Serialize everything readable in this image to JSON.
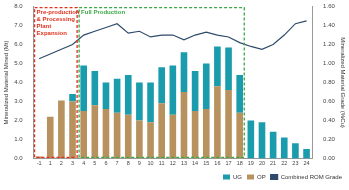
{
  "chart_data": {
    "type": "bar",
    "stacked": true,
    "grid": false,
    "legend": "bottom",
    "y_label": "Mineralized Material Mined (Mt)",
    "y2_label": "Mineralized Material Grade (%Cu)",
    "categories": [
      "-1",
      "1",
      "2",
      "3",
      "4",
      "5",
      "6",
      "7",
      "8",
      "9",
      "10",
      "11",
      "12",
      "13",
      "14",
      "15",
      "16",
      "17",
      "18",
      "19",
      "20",
      "21",
      "22",
      "23",
      "24"
    ],
    "series": [
      {
        "name": "UG",
        "type": "bar",
        "color": "#1a9cac",
        "values": [
          0,
          0,
          0,
          0.4,
          2.4,
          1.8,
          1.4,
          1.8,
          2.1,
          2.0,
          2.1,
          1.9,
          2.6,
          2.1,
          2.1,
          2.4,
          2.1,
          2.25,
          2.0,
          2.0,
          1.9,
          1.4,
          1.1,
          0.8,
          0.5
        ]
      },
      {
        "name": "OP",
        "type": "bar",
        "color": "#b8925e",
        "values": [
          0.1,
          2.2,
          3.05,
          3.0,
          2.5,
          2.8,
          2.6,
          2.4,
          2.3,
          2.0,
          1.9,
          2.9,
          2.3,
          3.5,
          2.5,
          2.6,
          3.8,
          3.6,
          2.4,
          0,
          0,
          0,
          0,
          0,
          0
        ]
      },
      {
        "name": "Combined ROM Grade",
        "type": "line",
        "axis": "y2",
        "color": "#2e4a6b",
        "values": [
          1.05,
          1.1,
          1.15,
          1.2,
          1.3,
          1.34,
          1.38,
          1.42,
          1.32,
          1.34,
          1.28,
          1.3,
          1.3,
          1.25,
          1.3,
          1.33,
          1.3,
          1.28,
          1.22,
          1.18,
          1.15,
          1.2,
          1.3,
          1.42,
          1.45
        ]
      }
    ],
    "ylim": [
      0,
      8
    ],
    "yticks": [
      {
        "value": 0,
        "label": "0.0"
      },
      {
        "value": 1,
        "label": "1.0"
      },
      {
        "value": 2,
        "label": "2.0"
      },
      {
        "value": 3,
        "label": "3.0"
      },
      {
        "value": 4,
        "label": "4.0"
      },
      {
        "value": 5,
        "label": "5.0"
      },
      {
        "value": 6,
        "label": "6.0"
      },
      {
        "value": 7,
        "label": "7.0"
      },
      {
        "value": 8,
        "label": "8.0"
      }
    ],
    "y2lim": [
      0,
      1.6
    ],
    "y2ticks": [
      {
        "value": 0,
        "label": "0.00"
      },
      {
        "value": 0.2,
        "label": "0.20"
      },
      {
        "value": 0.4,
        "label": "0.40"
      },
      {
        "value": 0.6,
        "label": "0.60"
      },
      {
        "value": 0.8,
        "label": "0.80"
      },
      {
        "value": 1.0,
        "label": "1.00"
      },
      {
        "value": 1.2,
        "label": "1.20"
      },
      {
        "value": 1.4,
        "label": "1.40"
      },
      {
        "value": 1.6,
        "label": "1.60"
      }
    ],
    "annotations": [
      {
        "text": "Pre-production & Processing Plant Expansion",
        "color": "#e0301e",
        "from": "-1",
        "to": "3"
      },
      {
        "text": "Full Production",
        "color": "#3aa847",
        "from": "4",
        "to": "18"
      }
    ]
  }
}
